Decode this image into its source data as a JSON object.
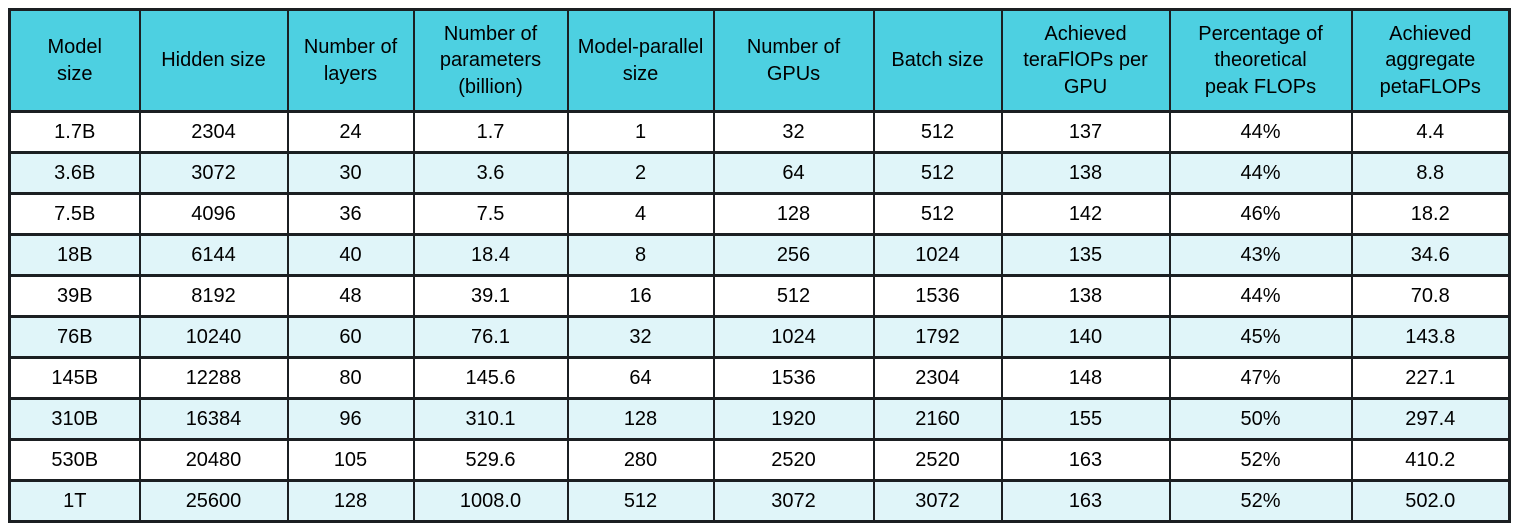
{
  "chart_data": {
    "type": "table",
    "columns": [
      "Model\nsize",
      "Hidden size",
      "Number of\nlayers",
      "Number of\nparameters\n(billion)",
      "Model-parallel\nsize",
      "Number of\nGPUs",
      "Batch size",
      "Achieved\nteraFlOPs per\nGPU",
      "Percentage of\ntheoretical\npeak FLOPs",
      "Achieved\naggregate\npetaFLOPs"
    ],
    "column_names_plain": [
      "Model size",
      "Hidden size",
      "Number of layers",
      "Number of parameters (billion)",
      "Model-parallel size",
      "Number of GPUs",
      "Batch size",
      "Achieved teraFlOPs per GPU",
      "Percentage of theoretical peak FLOPs",
      "Achieved aggregate petaFLOPs"
    ],
    "rows": [
      [
        "1.7B",
        "2304",
        "24",
        "1.7",
        "1",
        "32",
        "512",
        "137",
        "44%",
        "4.4"
      ],
      [
        "3.6B",
        "3072",
        "30",
        "3.6",
        "2",
        "64",
        "512",
        "138",
        "44%",
        "8.8"
      ],
      [
        "7.5B",
        "4096",
        "36",
        "7.5",
        "4",
        "128",
        "512",
        "142",
        "46%",
        "18.2"
      ],
      [
        "18B",
        "6144",
        "40",
        "18.4",
        "8",
        "256",
        "1024",
        "135",
        "43%",
        "34.6"
      ],
      [
        "39B",
        "8192",
        "48",
        "39.1",
        "16",
        "512",
        "1536",
        "138",
        "44%",
        "70.8"
      ],
      [
        "76B",
        "10240",
        "60",
        "76.1",
        "32",
        "1024",
        "1792",
        "140",
        "45%",
        "143.8"
      ],
      [
        "145B",
        "12288",
        "80",
        "145.6",
        "64",
        "1536",
        "2304",
        "148",
        "47%",
        "227.1"
      ],
      [
        "310B",
        "16384",
        "96",
        "310.1",
        "128",
        "1920",
        "2160",
        "155",
        "50%",
        "297.4"
      ],
      [
        "530B",
        "20480",
        "105",
        "529.6",
        "280",
        "2520",
        "2520",
        "163",
        "52%",
        "410.2"
      ],
      [
        "1T",
        "25600",
        "128",
        "1008.0",
        "512",
        "3072",
        "3072",
        "163",
        "52%",
        "502.0"
      ]
    ],
    "colors": {
      "header_bg": "#4dd0e1",
      "row_bg": "#ffffff",
      "row_alt_bg": "#e0f5f9",
      "border": "#1b1f22",
      "text": "#000000"
    },
    "layout_hints": {
      "grid": "on",
      "stripes": "even rows tinted"
    }
  }
}
